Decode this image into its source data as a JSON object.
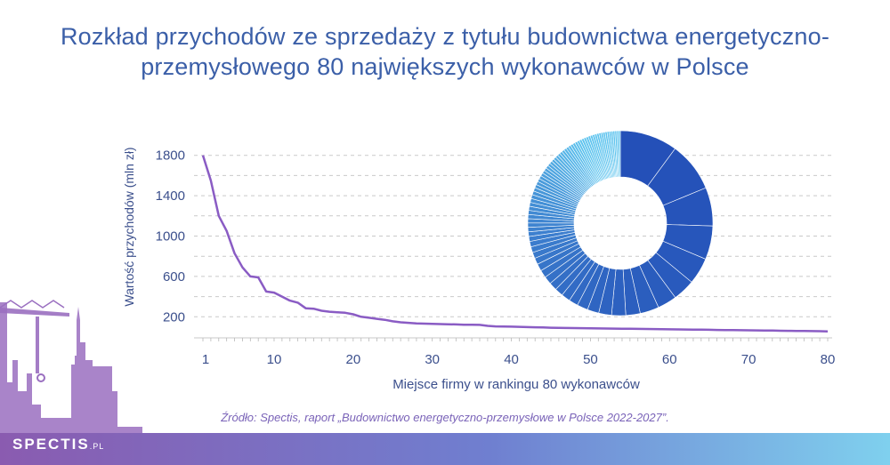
{
  "title_line1": "Rozkład przychodów ze sprzedaży z tytułu budownictwa energetyczno-",
  "title_line2": "przemysłowego 80 największych wykonawców w Polsce",
  "source": "Źródło: Spectis, raport „Budownictwo energetyczno-przemysłowe w Polsce 2022-2027”.",
  "brand": {
    "name": "SPECTIS",
    "suffix": ".PL"
  },
  "colors": {
    "title": "#3b5fa8",
    "line": "#8a5cc4",
    "axis_text": "#3b4f8c",
    "grid": "#c9c9c9",
    "donut_dark": "#2450b8",
    "donut_light": "#5fc4ee",
    "source": "#7a63b8",
    "footer_left": "#8a5bb0",
    "footer_right": "#7fd0ee"
  },
  "chart_data": [
    {
      "type": "line",
      "xlabel": "Miejsce firmy w rankingu 80 wykonawców",
      "ylabel": "Wartość przychodów (mln zł)",
      "xticks": [
        1,
        10,
        20,
        30,
        40,
        50,
        60,
        70,
        80
      ],
      "yticks": [
        200,
        600,
        1000,
        1400,
        1800
      ],
      "xlim": [
        0,
        80
      ],
      "ylim": [
        0,
        1800
      ],
      "grid": true,
      "x": [
        1,
        2,
        3,
        4,
        5,
        6,
        7,
        8,
        9,
        10,
        11,
        12,
        13,
        14,
        15,
        16,
        17,
        18,
        19,
        20,
        21,
        22,
        23,
        24,
        25,
        26,
        27,
        28,
        29,
        30,
        31,
        32,
        33,
        34,
        35,
        36,
        37,
        38,
        39,
        40,
        41,
        42,
        43,
        44,
        45,
        46,
        47,
        48,
        49,
        50,
        51,
        52,
        53,
        54,
        55,
        56,
        57,
        58,
        59,
        60,
        61,
        62,
        63,
        64,
        65,
        66,
        67,
        68,
        69,
        70,
        71,
        72,
        73,
        74,
        75,
        76,
        77,
        78,
        79,
        80
      ],
      "y": [
        1800,
        1550,
        1200,
        1050,
        830,
        690,
        600,
        590,
        450,
        440,
        400,
        360,
        340,
        285,
        280,
        260,
        250,
        245,
        240,
        225,
        200,
        190,
        180,
        170,
        155,
        145,
        140,
        135,
        132,
        130,
        128,
        126,
        124,
        122,
        121,
        120,
        110,
        105,
        103,
        102,
        100,
        98,
        96,
        94,
        92,
        90,
        89,
        88,
        87,
        86,
        85,
        84,
        83,
        82,
        81,
        80,
        79,
        78,
        77,
        76,
        75,
        74,
        73,
        72,
        71,
        70,
        69,
        68,
        67,
        66,
        65,
        64,
        63,
        62,
        61,
        60,
        59,
        58,
        57,
        55
      ]
    },
    {
      "type": "pie",
      "style": "donut",
      "note": "same 80 firm revenues shown as shares",
      "values": [
        1800,
        1550,
        1200,
        1050,
        830,
        690,
        600,
        590,
        450,
        440,
        400,
        360,
        340,
        285,
        280,
        260,
        250,
        245,
        240,
        225,
        200,
        190,
        180,
        170,
        155,
        145,
        140,
        135,
        132,
        130,
        128,
        126,
        124,
        122,
        121,
        120,
        110,
        105,
        103,
        102,
        100,
        98,
        96,
        94,
        92,
        90,
        89,
        88,
        87,
        86,
        85,
        84,
        83,
        82,
        81,
        80,
        79,
        78,
        77,
        76,
        75,
        74,
        73,
        72,
        71,
        70,
        69,
        68,
        67,
        66,
        65,
        64,
        63,
        62,
        61,
        60,
        59,
        58,
        57,
        55
      ]
    }
  ]
}
